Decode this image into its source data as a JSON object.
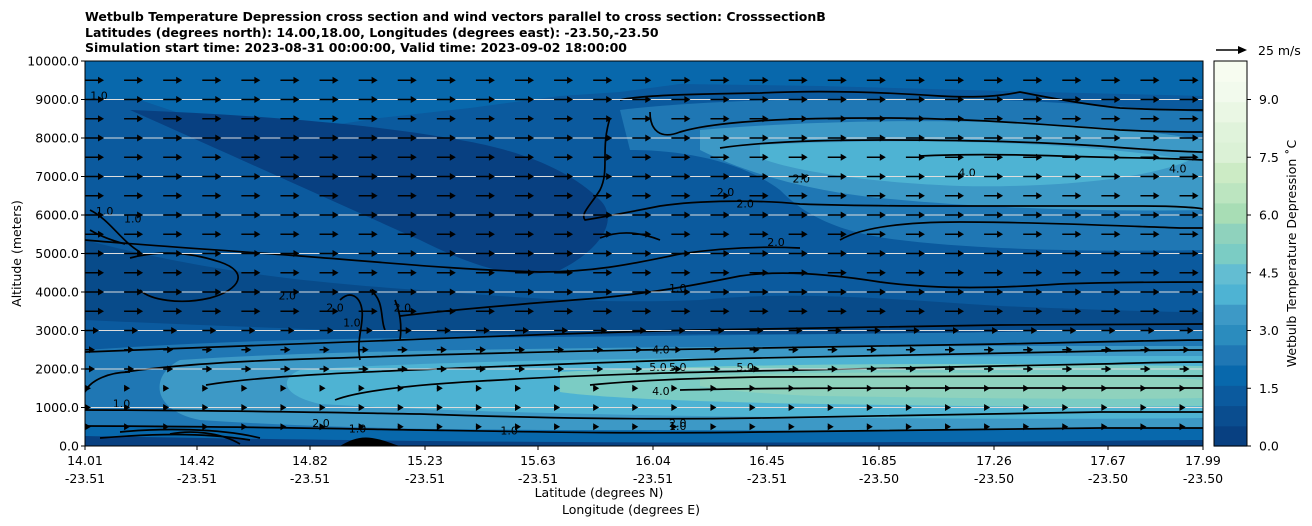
{
  "chart_data": {
    "type": "contour",
    "title_lines": [
      "Wetbulb Temperature Depression cross section and wind vectors parallel to cross section: CrosssectionB",
      "Latitudes (degrees north): 14.00,18.00, Longitudes (degrees east): -23.50,-23.50",
      "Simulation start time: 2023-08-31 00:00:00, Valid time: 2023-09-02 18:00:00"
    ],
    "xlabel": "Latitude (degrees N)",
    "xlabel2": "Longitude (degrees E)",
    "ylabel": "Altitude (meters)",
    "ylim": [
      0,
      10000
    ],
    "yticks": [
      "0.0",
      "1000.0",
      "2000.0",
      "3000.0",
      "4000.0",
      "5000.0",
      "6000.0",
      "7000.0",
      "8000.0",
      "9000.0",
      "10000.0"
    ],
    "xticks": [
      {
        "lat": "14.01",
        "lon": "-23.51"
      },
      {
        "lat": "14.42",
        "lon": "-23.51"
      },
      {
        "lat": "14.82",
        "lon": "-23.51"
      },
      {
        "lat": "15.23",
        "lon": "-23.51"
      },
      {
        "lat": "15.63",
        "lon": "-23.51"
      },
      {
        "lat": "16.04",
        "lon": "-23.51"
      },
      {
        "lat": "16.45",
        "lon": "-23.51"
      },
      {
        "lat": "16.85",
        "lon": "-23.50"
      },
      {
        "lat": "17.26",
        "lon": "-23.50"
      },
      {
        "lat": "17.67",
        "lon": "-23.50"
      },
      {
        "lat": "17.99",
        "lon": "-23.50"
      }
    ],
    "colorbar": {
      "label": "Wetbulb Temperature Depression ˚C",
      "range": [
        0,
        10
      ],
      "ticks": [
        "0.0",
        "1.5",
        "3.0",
        "4.5",
        "6.0",
        "7.5",
        "9.0"
      ],
      "colors": [
        "#084081",
        "#0a4d8f",
        "#0b5a9e",
        "#0868ac",
        "#1f77b4",
        "#2b8cbe",
        "#3d99c6",
        "#4eb3d3",
        "#63bdd2",
        "#7bccc4",
        "#8fd2bd",
        "#a8ddb5",
        "#bce5c0",
        "#ccebc5",
        "#dbf1d6",
        "#e0f3db",
        "#eaf7e4",
        "#f2faed",
        "#f7fcf0"
      ]
    },
    "wind_key": "25 m/s",
    "grid": true,
    "contour_labels": [
      {
        "text": "1.0",
        "x": 14.06,
        "y": 9000
      },
      {
        "text": "1.0",
        "x": 14.08,
        "y": 6000
      },
      {
        "text": "1.0",
        "x": 14.18,
        "y": 5800
      },
      {
        "text": "2.0",
        "x": 15.57,
        "y": 10000
      },
      {
        "text": "2.0",
        "x": 16.56,
        "y": 6850
      },
      {
        "text": "2.0",
        "x": 16.36,
        "y": 6200
      },
      {
        "text": "2.0",
        "x": 16.29,
        "y": 6500
      },
      {
        "text": "2.0",
        "x": 16.47,
        "y": 5200
      },
      {
        "text": "1.0",
        "x": 16.12,
        "y": 4000
      },
      {
        "text": "4.0",
        "x": 17.15,
        "y": 7000
      },
      {
        "text": "4.0",
        "x": 17.9,
        "y": 7100
      },
      {
        "text": "2.0",
        "x": 14.73,
        "y": 3800
      },
      {
        "text": "2.0",
        "x": 14.9,
        "y": 3500
      },
      {
        "text": "1.0",
        "x": 14.96,
        "y": 3100
      },
      {
        "text": "2.0",
        "x": 15.14,
        "y": 3500
      },
      {
        "text": "4.0",
        "x": 16.06,
        "y": 2400
      },
      {
        "text": "5.0",
        "x": 16.05,
        "y": 1950
      },
      {
        "text": "5.0",
        "x": 16.12,
        "y": 1950
      },
      {
        "text": "5.0",
        "x": 16.36,
        "y": 1950
      },
      {
        "text": "4.0",
        "x": 16.06,
        "y": 1330
      },
      {
        "text": "1.0",
        "x": 14.14,
        "y": 1000
      },
      {
        "text": "2.0",
        "x": 14.85,
        "y": 500
      },
      {
        "text": "1.0",
        "x": 14.98,
        "y": 350
      },
      {
        "text": "2.0",
        "x": 16.12,
        "y": 500
      },
      {
        "text": "1.0",
        "x": 16.12,
        "y": 420
      },
      {
        "text": "1.0",
        "x": 15.52,
        "y": 300
      },
      {
        "text": "1.0",
        "x": 16.56,
        "y": 200
      },
      {
        "text": "1.0",
        "x": 16.56,
        "y": 200
      },
      {
        "text": "1.0",
        "x": 16.56,
        "y": 200
      },
      {
        "text": "1.0",
        "x": 16.56,
        "y": 200
      },
      {
        "text": "1.0",
        "x": 16.56,
        "y": 200
      },
      {
        "text": "1.0",
        "x": 16.56,
        "y": 200
      }
    ]
  }
}
